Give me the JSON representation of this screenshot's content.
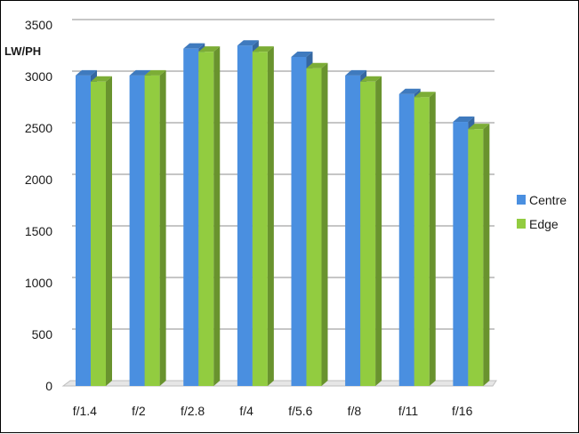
{
  "chart_data": {
    "type": "bar",
    "style": "3d-clustered-column",
    "categories": [
      "f/1.4",
      "f/2",
      "f/2.8",
      "f/4",
      "f/5.6",
      "f/8",
      "f/11",
      "f/16"
    ],
    "series": [
      {
        "name": "Centre",
        "color": "#4a8fe0",
        "values": [
          3010,
          3010,
          3270,
          3300,
          3190,
          3010,
          2830,
          2560
        ]
      },
      {
        "name": "Edge",
        "color": "#92cc40",
        "values": [
          2950,
          3010,
          3240,
          3240,
          3080,
          2950,
          2800,
          2490
        ]
      }
    ],
    "ylabel": "LW/PH",
    "ylim": [
      0,
      3500
    ],
    "yticks": [
      0,
      500,
      1000,
      1500,
      2000,
      2500,
      3000,
      3500
    ],
    "grid": true,
    "legend": "right"
  }
}
